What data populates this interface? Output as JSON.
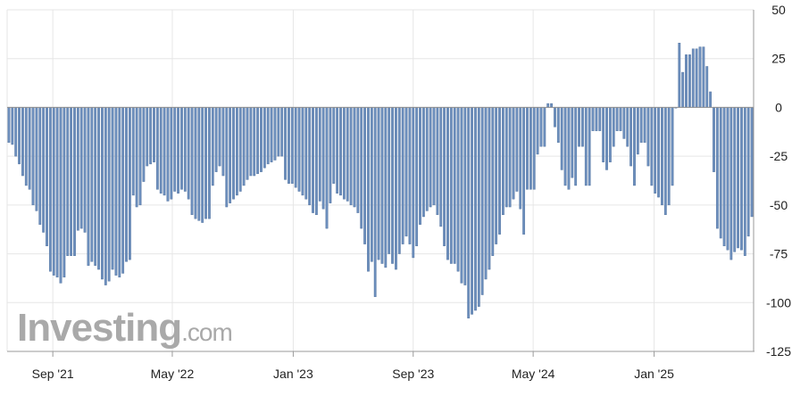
{
  "watermark": {
    "brand": "Investing",
    "suffix": ".com"
  },
  "colors": {
    "bar": "#6d8fbd",
    "bar_stroke": "#4e6f9c",
    "grid": "#e6e6e6",
    "axis": "#9a9a9a",
    "zero": "#8f8f8f"
  },
  "chart_data": {
    "type": "bar",
    "title": "",
    "xlabel": "",
    "ylabel": "",
    "ylim": [
      -125,
      50
    ],
    "y_ticks": [
      50,
      25,
      0,
      -25,
      -50,
      -75,
      -100,
      -125
    ],
    "y_tick_labels": [
      "50",
      "25",
      "0",
      "-25",
      "-50",
      "-75",
      "-100",
      "-125"
    ],
    "x_tick_labels": [
      "Sep '21",
      "May '22",
      "Jan '23",
      "Sep '23",
      "May '24",
      "Jan '25"
    ],
    "grid": true,
    "x_start": "2021-06-04",
    "bar_interval_days": 7,
    "values": [
      -18,
      -19,
      -25,
      -29,
      -35,
      -40,
      -42,
      -50,
      -53,
      -60,
      -64,
      -71,
      -84,
      -86,
      -87,
      -90,
      -87,
      -76,
      -76,
      -76,
      -63,
      -62,
      -64,
      -81,
      -79,
      -81,
      -83,
      -88,
      -91,
      -89,
      -83,
      -86,
      -87,
      -85,
      -79,
      -78,
      -45,
      -51,
      -50,
      -38,
      -30,
      -29,
      -28,
      -42,
      -44,
      -45,
      -48,
      -47,
      -43,
      -44,
      -42,
      -43,
      -47,
      -55,
      -57,
      -58,
      -59,
      -57,
      -57,
      -40,
      -33,
      -30,
      -35,
      -51,
      -49,
      -47,
      -45,
      -43,
      -40,
      -37,
      -35,
      -35,
      -34,
      -33,
      -31,
      -29,
      -28,
      -27,
      -25,
      -25,
      -37,
      -39,
      -39,
      -41,
      -43,
      -45,
      -47,
      -50,
      -54,
      -55,
      -48,
      -52,
      -62,
      -49,
      -39,
      -44,
      -45,
      -47,
      -48,
      -50,
      -51,
      -54,
      -62,
      -70,
      -84,
      -79,
      -97,
      -78,
      -80,
      -82,
      -75,
      -80,
      -83,
      -75,
      -70,
      -66,
      -70,
      -77,
      -71,
      -60,
      -56,
      -53,
      -51,
      -50,
      -55,
      -61,
      -71,
      -78,
      -80,
      -80,
      -84,
      -90,
      -91,
      -108,
      -106,
      -104,
      -102,
      -96,
      -88,
      -83,
      -76,
      -70,
      -65,
      -55,
      -51,
      -51,
      -47,
      -43,
      -52,
      -65,
      -42,
      -42,
      -42,
      -24,
      -20,
      -20,
      2,
      2,
      -10,
      -18,
      -32,
      -40,
      -42,
      -36,
      -40,
      -20,
      -20,
      -40,
      -40,
      -12,
      -12,
      -12,
      -28,
      -32,
      -28,
      -20,
      -12,
      -12,
      -16,
      -20,
      -30,
      -40,
      -24,
      -18,
      -18,
      -30,
      -40,
      -44,
      -46,
      -50,
      -55,
      -50,
      -40,
      0,
      33,
      18,
      27,
      27,
      30,
      30,
      31,
      31,
      21,
      8,
      -33,
      -62,
      -67,
      -71,
      -73,
      -78,
      -74,
      -72,
      -73,
      -76,
      -66,
      -56
    ]
  }
}
